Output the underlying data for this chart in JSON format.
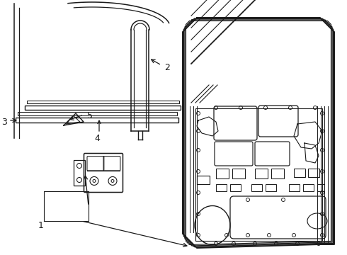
{
  "bg_color": "#ffffff",
  "lc": "#1a1a1a",
  "label_color": "#1a1a1a",
  "lw": 1.0
}
